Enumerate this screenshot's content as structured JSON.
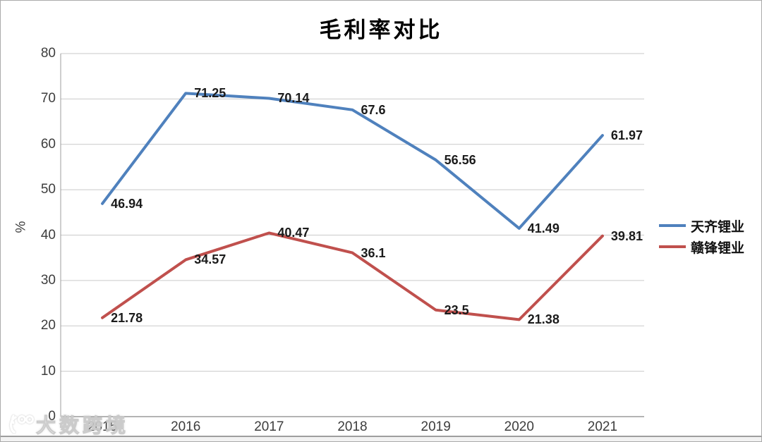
{
  "page": {
    "title": "毛利率对比",
    "y_axis_unit": "%",
    "watermark": {
      "text": "大数跨境"
    }
  },
  "chart_data": {
    "type": "line",
    "title": "毛利率对比",
    "categories": [
      "2015",
      "2016",
      "2017",
      "2018",
      "2019",
      "2020",
      "2021"
    ],
    "series": [
      {
        "name": "天齐锂业",
        "color": "#4F81BD",
        "values": [
          46.94,
          71.25,
          70.14,
          67.6,
          56.56,
          41.49,
          61.97
        ]
      },
      {
        "name": "赣锋锂业",
        "color": "#C0504D",
        "values": [
          21.78,
          34.57,
          40.47,
          36.1,
          23.5,
          21.38,
          39.81
        ]
      }
    ],
    "xlabel": "",
    "ylabel": "%",
    "ylim": [
      0,
      80
    ],
    "ytick_step": 10,
    "grid": true,
    "legend_position": "right",
    "data_labels": true
  }
}
